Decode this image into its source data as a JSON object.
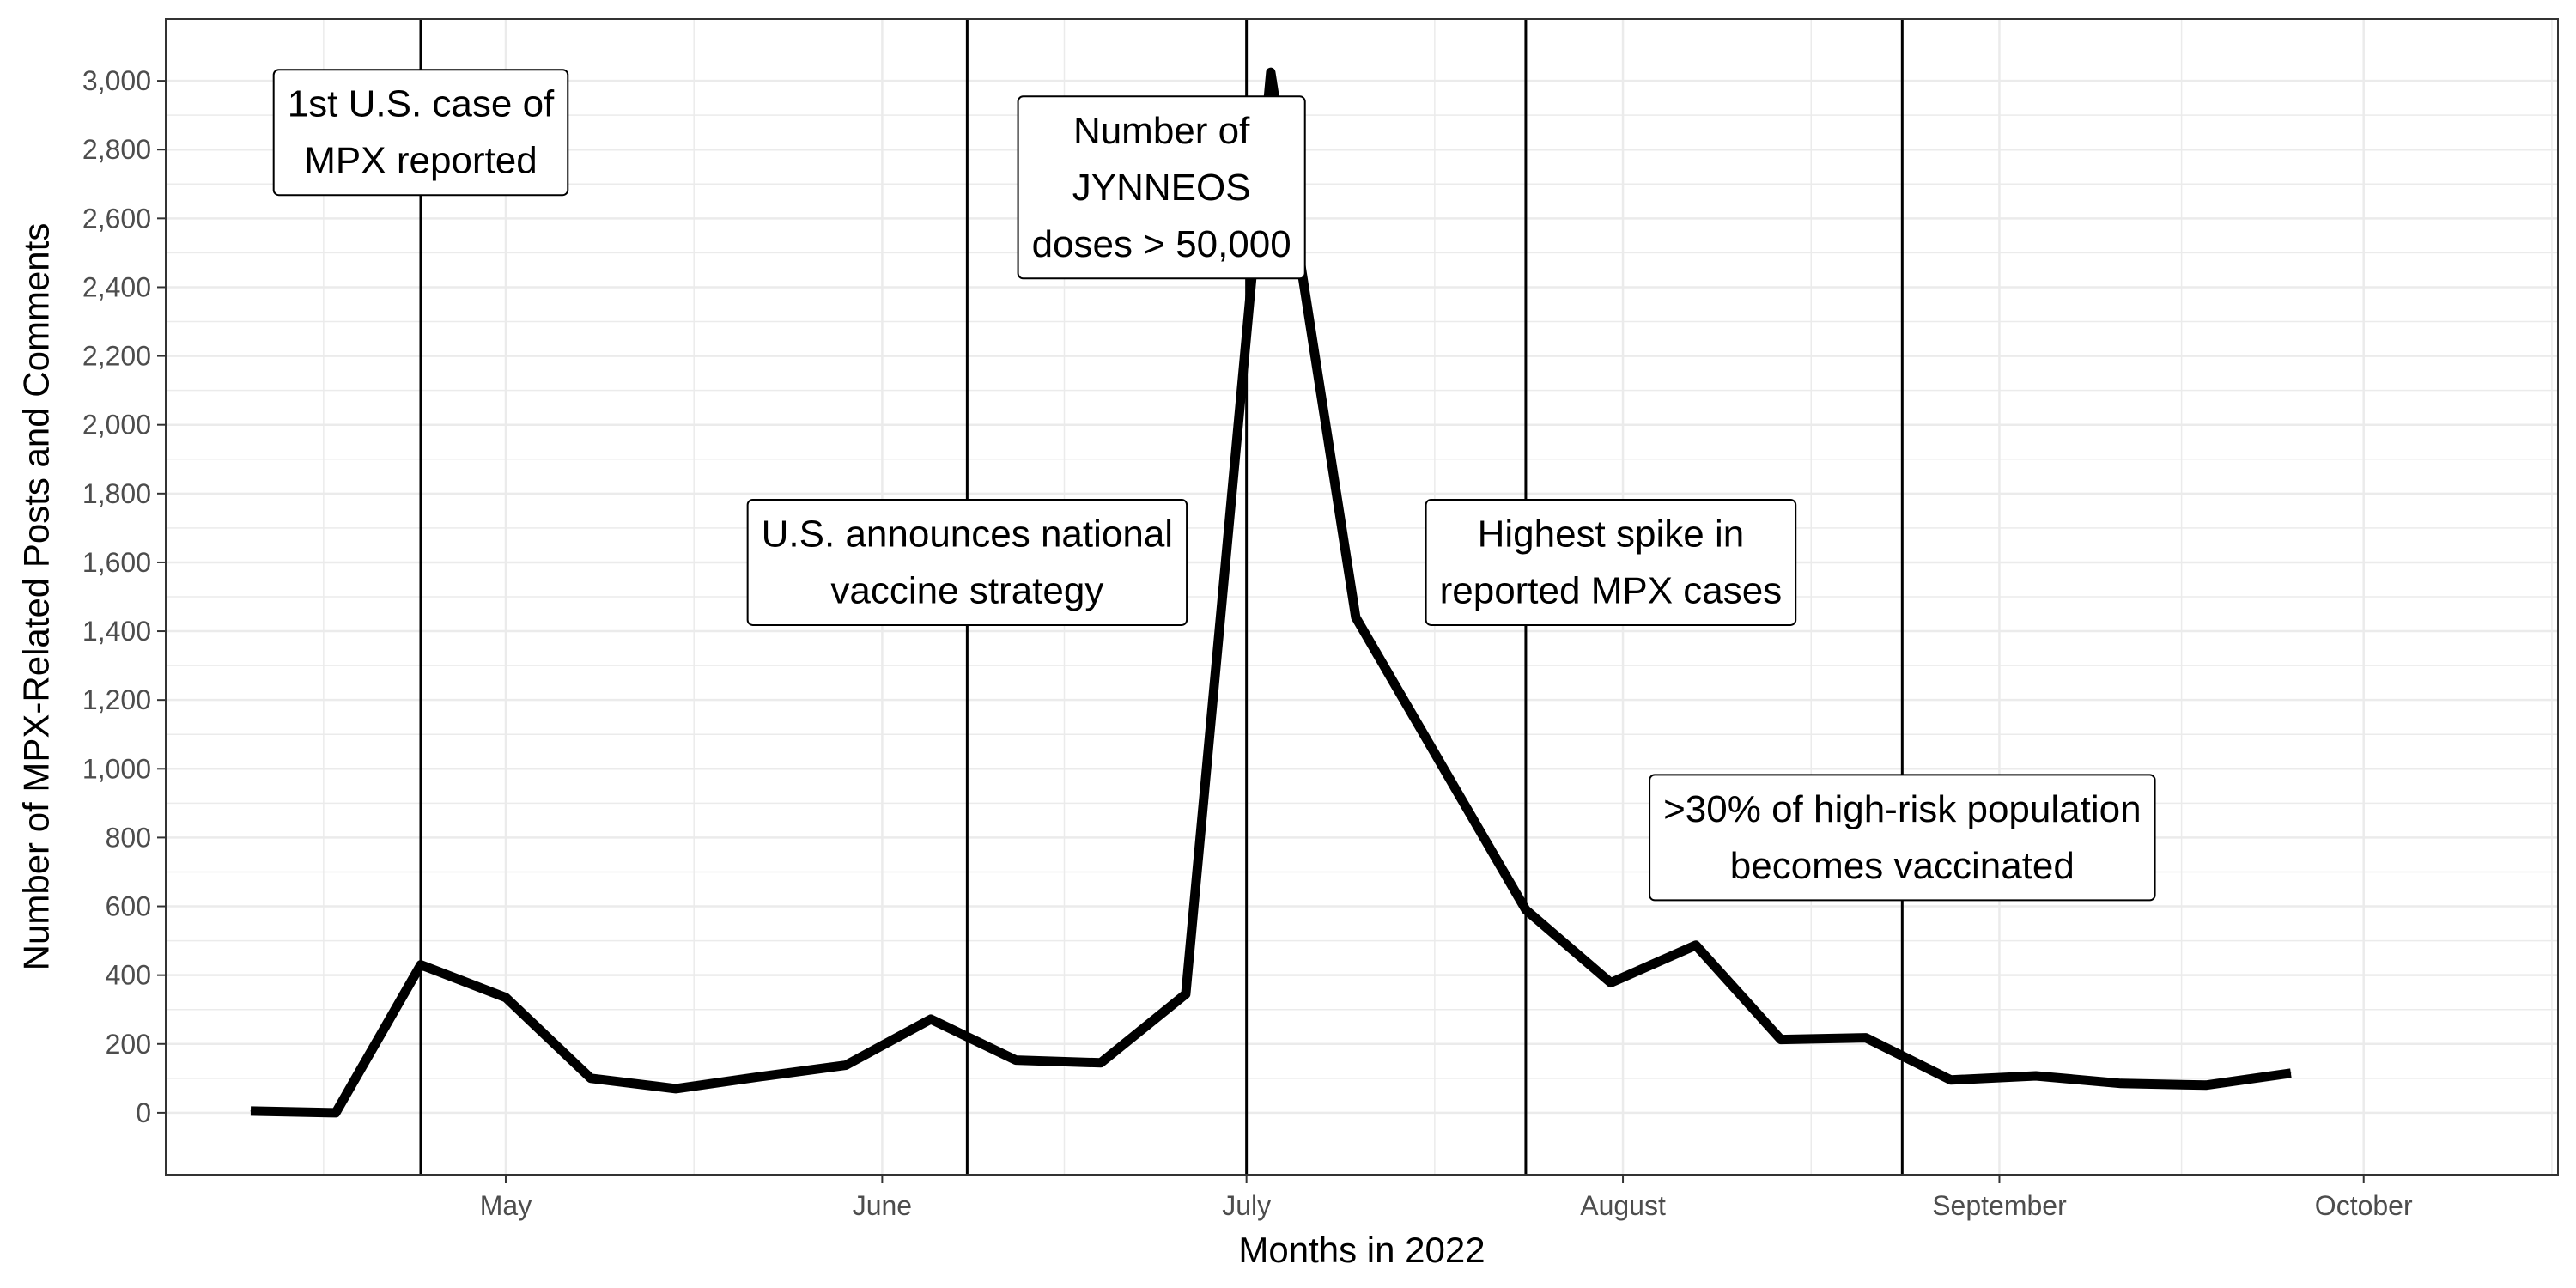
{
  "chart_data": {
    "type": "line",
    "title": "",
    "xlabel": "Months in 2022",
    "ylabel": "Number of MPX-Related Posts and Comments",
    "ylim": [
      -180,
      3180
    ],
    "yticks": [
      0,
      200,
      400,
      600,
      800,
      1000,
      1200,
      1400,
      1600,
      1800,
      2000,
      2200,
      2400,
      2600,
      2800,
      3000
    ],
    "ytick_labels": [
      "0",
      "200",
      "400",
      "600",
      "800",
      "1,000",
      "1,200",
      "1,400",
      "1,600",
      "1,800",
      "2,000",
      "2,200",
      "2,400",
      "2,600",
      "2,800",
      "3,000"
    ],
    "xlim": [
      "2022-04-03",
      "2022-10-17"
    ],
    "xticks": [
      {
        "date": "2022-05-01",
        "label": "May"
      },
      {
        "date": "2022-06-01",
        "label": "June"
      },
      {
        "date": "2022-07-01",
        "label": "July"
      },
      {
        "date": "2022-08-01",
        "label": "August"
      },
      {
        "date": "2022-09-01",
        "label": "September"
      },
      {
        "date": "2022-10-01",
        "label": "October"
      }
    ],
    "grid": true,
    "series": [
      {
        "color": "#000000",
        "points": [
          {
            "x": "2022-04-10",
            "y": 5
          },
          {
            "x": "2022-04-17",
            "y": 0
          },
          {
            "x": "2022-04-24",
            "y": 430
          },
          {
            "x": "2022-05-01",
            "y": 335
          },
          {
            "x": "2022-05-08",
            "y": 100
          },
          {
            "x": "2022-05-15",
            "y": 70
          },
          {
            "x": "2022-05-22",
            "y": 105
          },
          {
            "x": "2022-05-29",
            "y": 138
          },
          {
            "x": "2022-06-05",
            "y": 272
          },
          {
            "x": "2022-06-12",
            "y": 153
          },
          {
            "x": "2022-06-19",
            "y": 145
          },
          {
            "x": "2022-06-26",
            "y": 345
          },
          {
            "x": "2022-07-03",
            "y": 3025
          },
          {
            "x": "2022-07-10",
            "y": 1440
          },
          {
            "x": "2022-07-24",
            "y": 590
          },
          {
            "x": "2022-07-31",
            "y": 378
          },
          {
            "x": "2022-08-07",
            "y": 487
          },
          {
            "x": "2022-08-14",
            "y": 213
          },
          {
            "x": "2022-08-21",
            "y": 218
          },
          {
            "x": "2022-08-28",
            "y": 95
          },
          {
            "x": "2022-09-04",
            "y": 107
          },
          {
            "x": "2022-09-11",
            "y": 85
          },
          {
            "x": "2022-09-18",
            "y": 80
          },
          {
            "x": "2022-09-25",
            "y": 115
          }
        ]
      }
    ],
    "vlines": [
      "2022-04-24",
      "2022-06-08",
      "2022-07-01",
      "2022-07-24",
      "2022-08-24"
    ],
    "annotations": [
      {
        "lines": [
          "1st U.S. case of",
          "MPX reported"
        ],
        "x": "2022-04-24",
        "y": 2850
      },
      {
        "lines": [
          "Number of",
          "JYNNEOS",
          "doses > 50,000"
        ],
        "x": "2022-06-24",
        "y": 2690
      },
      {
        "lines": [
          "U.S. announces national",
          "vaccine strategy"
        ],
        "x": "2022-06-08",
        "y": 1600
      },
      {
        "lines": [
          "Highest spike in",
          "reported MPX cases"
        ],
        "x": "2022-07-31",
        "y": 1600
      },
      {
        "lines": [
          ">30% of high-risk population",
          "becomes vaccinated"
        ],
        "x": "2022-08-24",
        "y": 800
      }
    ]
  }
}
